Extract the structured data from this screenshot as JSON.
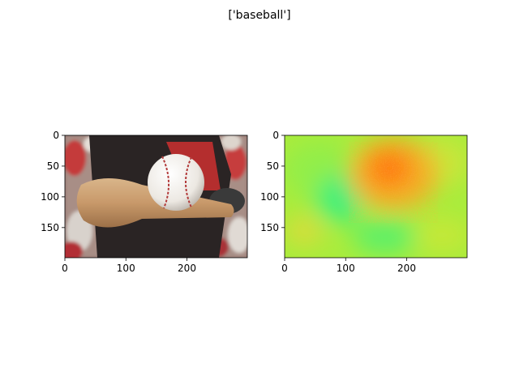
{
  "figure": {
    "suptitle": "['baseball']"
  },
  "chart_data": [
    {
      "type": "image",
      "description_role": "input-image",
      "xlim": [
        0,
        299
      ],
      "ylim": [
        199,
        0
      ],
      "xticks": [
        0,
        100,
        200
      ],
      "yticks": [
        0,
        50,
        100,
        150
      ],
      "grid": false
    },
    {
      "type": "heatmap",
      "description_role": "attribution-map",
      "xlim": [
        0,
        299
      ],
      "ylim": [
        199,
        0
      ],
      "xticks": [
        0,
        100,
        200
      ],
      "yticks": [
        0,
        50,
        100,
        150
      ],
      "grid": false
    }
  ]
}
